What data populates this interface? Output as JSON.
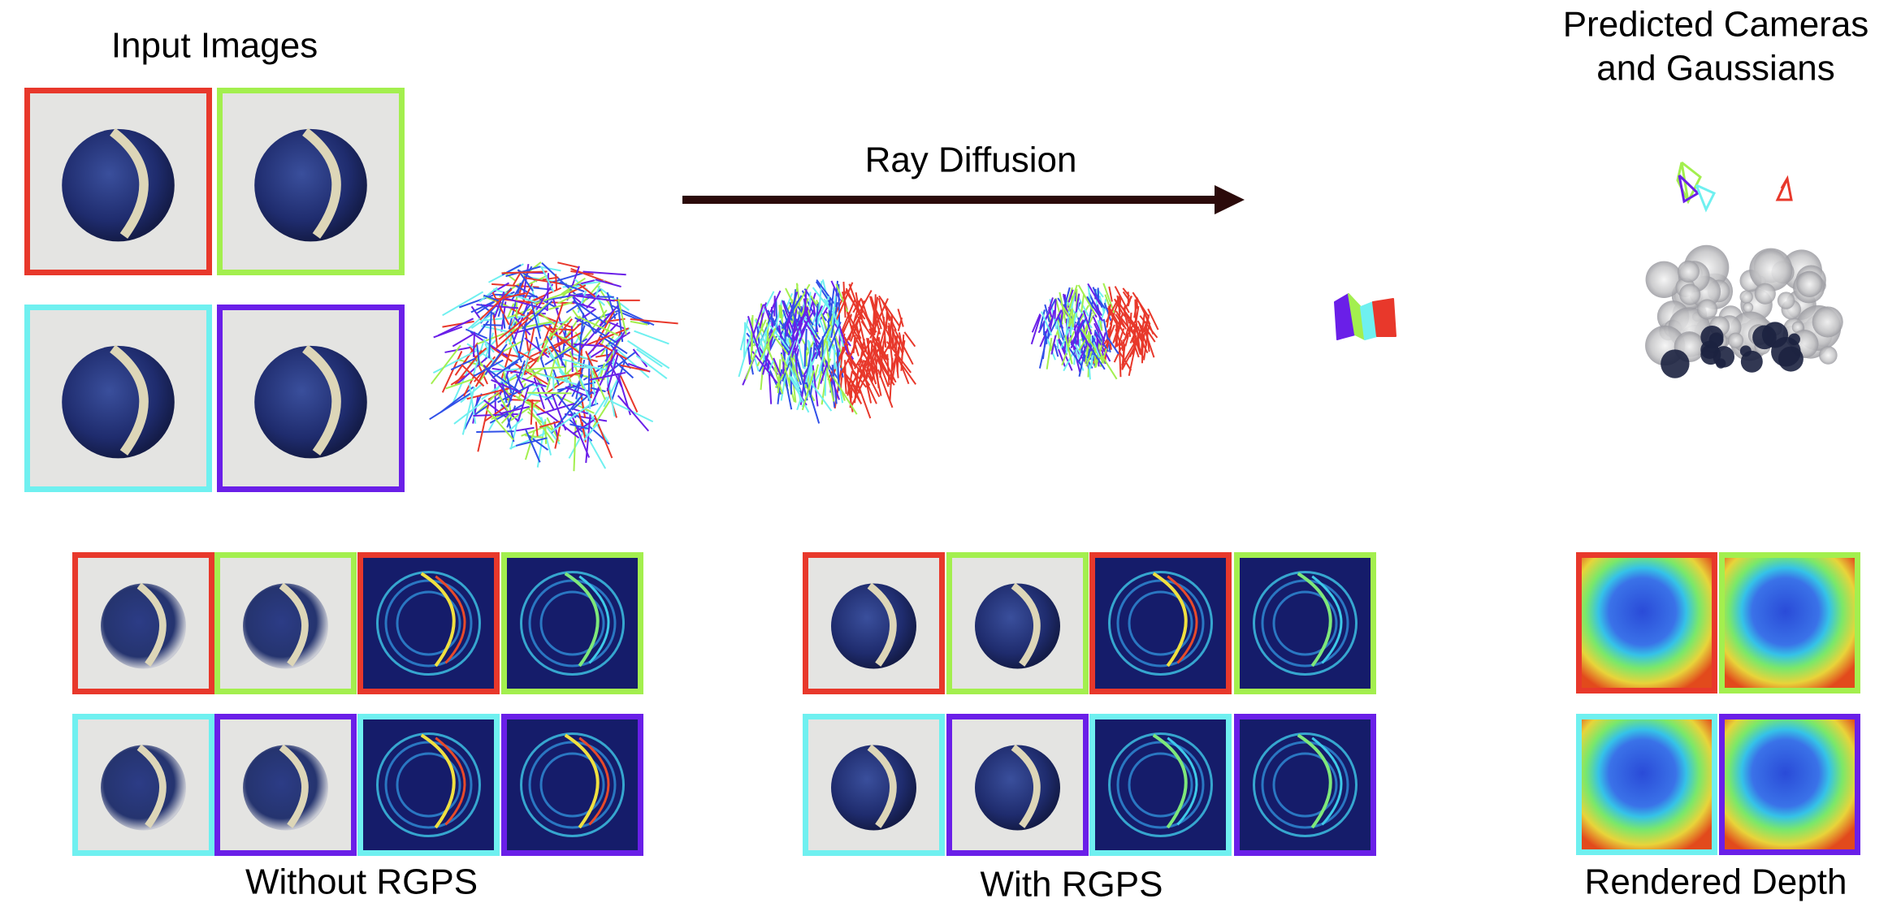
{
  "input_images": {
    "title": "Input Images"
  },
  "ray_diffusion": {
    "label": "Ray Diffusion"
  },
  "prediction": {
    "title_lines": [
      "Predicted Cameras",
      "and Gaussians"
    ]
  },
  "without_rgps": {
    "caption": "Without RGPS"
  },
  "with_rgps": {
    "caption": "With RGPS"
  },
  "rendered_depth": {
    "caption": "Rendered Depth"
  }
}
